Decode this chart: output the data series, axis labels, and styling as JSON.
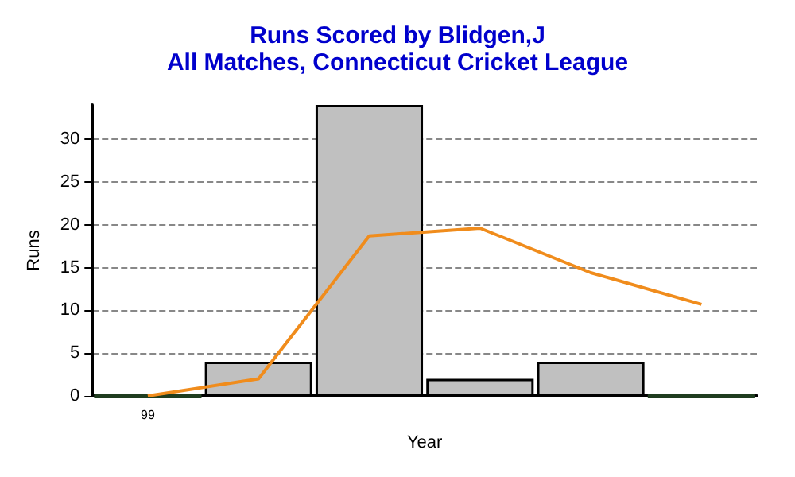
{
  "chart_data": {
    "type": "bar",
    "title": "Runs Scored by Blidgen,J",
    "subtitle": "All Matches, Connecticut Cricket League",
    "xlabel": "Year",
    "ylabel": "Runs",
    "categories": [
      "99",
      null,
      null,
      null,
      null,
      null
    ],
    "series": [
      {
        "colors": [
          "#1f3d1f",
          "#c0c0c0",
          "#c0c0c0",
          "#c0c0c0",
          "#c0c0c0",
          "#1f3d1f"
        ],
        "values": [
          0,
          4,
          34,
          2,
          4,
          0
        ]
      },
      {
        "type": "line",
        "color": "#f08c1c",
        "values": [
          0,
          2,
          18.7,
          19.6,
          14.4,
          10.7
        ]
      }
    ],
    "ylim": [
      0,
      34
    ],
    "yticks": [
      0,
      5,
      10,
      15,
      20,
      25,
      30
    ],
    "grid": "y",
    "marker": "none"
  }
}
